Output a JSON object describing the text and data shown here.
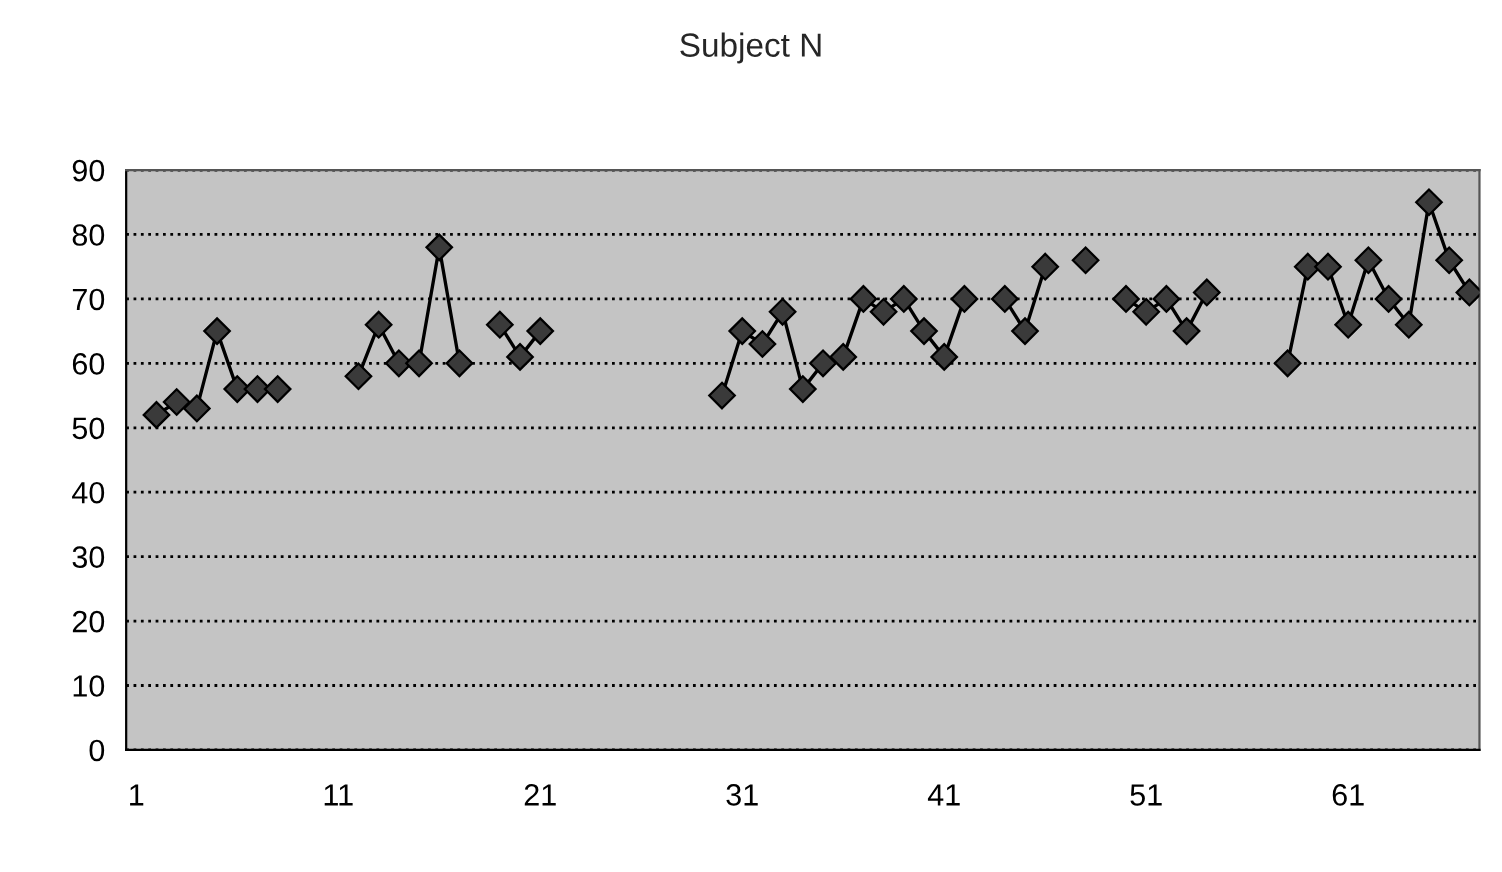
{
  "chart_data": {
    "type": "line",
    "title": "Subject N",
    "categories": [
      "1",
      null,
      null,
      null,
      null,
      null,
      null,
      null,
      null,
      null,
      "11",
      null,
      null,
      null,
      null,
      null,
      null,
      null,
      null,
      null,
      "21",
      null,
      null,
      null,
      null,
      null,
      null,
      null,
      null,
      null,
      "31",
      null,
      null,
      null,
      null,
      null,
      null,
      null,
      null,
      null,
      "41",
      null,
      null,
      null,
      null,
      null,
      null,
      null,
      null,
      null,
      "51",
      null,
      null,
      null,
      null,
      null,
      null,
      null,
      null,
      null,
      "61",
      null,
      null,
      null,
      null,
      null,
      null
    ],
    "series": [
      {
        "color": "#3a3a3a",
        "values": [
          null,
          52,
          54,
          53,
          65,
          56,
          56,
          56,
          null,
          null,
          null,
          58,
          66,
          60,
          60,
          78,
          60,
          null,
          66,
          61,
          65,
          null,
          null,
          null,
          null,
          null,
          null,
          null,
          null,
          55,
          65,
          63,
          68,
          56,
          60,
          61,
          70,
          68,
          70,
          65,
          61,
          70,
          null,
          70,
          65,
          75,
          null,
          76,
          null,
          70,
          68,
          70,
          65,
          71,
          null,
          null,
          null,
          60,
          75,
          75,
          66,
          76,
          70,
          66,
          85,
          76,
          71
        ]
      }
    ],
    "ylim": [
      0,
      90
    ],
    "yticks": [
      0,
      10,
      20,
      30,
      40,
      50,
      60,
      70,
      80,
      90
    ],
    "grid": "y",
    "marker": "diamond",
    "line_style": "solid"
  }
}
